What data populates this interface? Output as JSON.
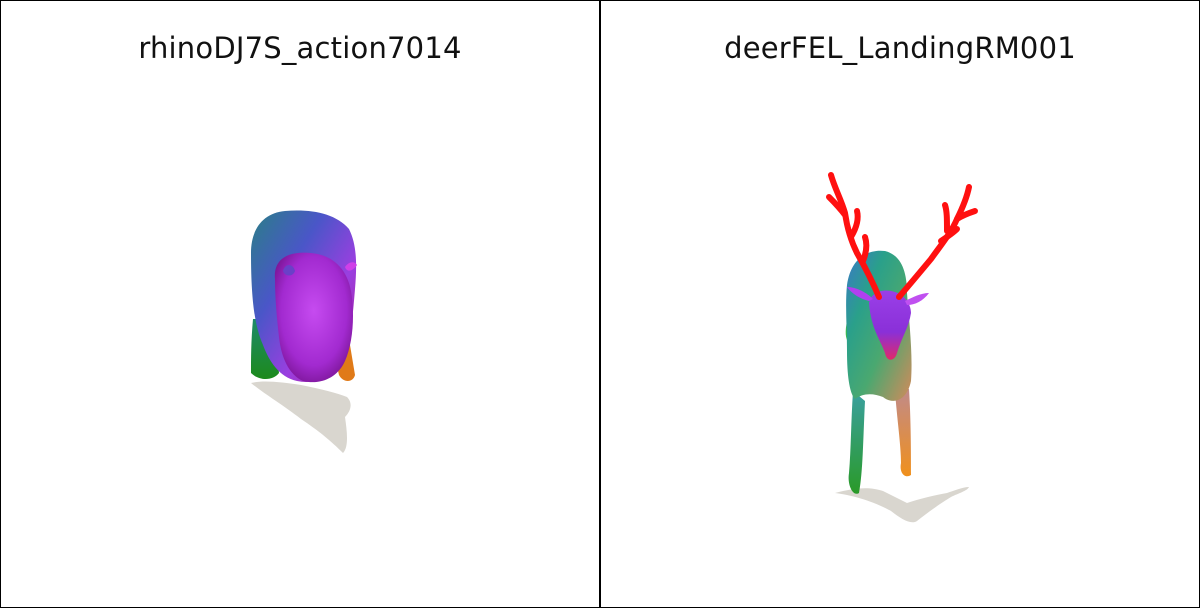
{
  "panels": [
    {
      "title": "rhinoDJ7S_action7014",
      "figure": "rhino-mesh"
    },
    {
      "title": "deerFEL_LandingRM001",
      "figure": "deer-mesh"
    }
  ]
}
